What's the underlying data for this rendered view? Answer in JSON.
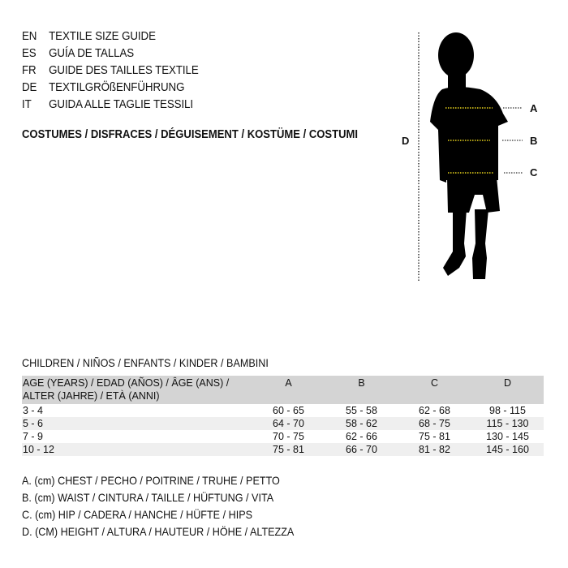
{
  "languages": [
    {
      "code": "EN",
      "title": "TEXTILE SIZE GUIDE"
    },
    {
      "code": "ES",
      "title": "GUÍA DE TALLAS"
    },
    {
      "code": "FR",
      "title": "GUIDE DES TAILLES TEXTILE"
    },
    {
      "code": "DE",
      "title": "TEXTILGRÖßENFÜHRUNG"
    },
    {
      "code": "IT",
      "title": "GUIDA ALLE TAGLIE TESSILI"
    }
  ],
  "category": "COSTUMES / DISFRACES / DÉGUISEMENT / KOSTÜME / COSTUMI",
  "figure": {
    "labels": {
      "a": "A",
      "b": "B",
      "c": "C",
      "d": "D"
    },
    "measure_line_color": "#e8d21a"
  },
  "table": {
    "caption": "CHILDREN / NIÑOS / ENFANTS / KINDER / BAMBINI",
    "header": {
      "age_line1": "AGE (YEARS) / EDAD (AÑOS) / ÂGE (ANS) /",
      "age_line2": "ALTER (JAHRE) / ETÀ (ANNI)",
      "a": "A",
      "b": "B",
      "c": "C",
      "d": "D"
    },
    "rows": [
      {
        "age": "3 - 4",
        "a": "60 - 65",
        "b": "55 - 58",
        "c": "62 - 68",
        "d": "98 - 115"
      },
      {
        "age": "5 - 6",
        "a": "64 - 70",
        "b": "58 - 62",
        "c": "68 - 75",
        "d": "115 - 130"
      },
      {
        "age": "7 - 9",
        "a": "70 - 75",
        "b": "62 - 66",
        "c": "75 - 81",
        "d": "130 - 145"
      },
      {
        "age": "10 - 12",
        "a": "75 - 81",
        "b": "66 - 70",
        "c": "81 - 82",
        "d": "145 - 160"
      }
    ]
  },
  "legend": [
    "A. (cm) CHEST / PECHO / POITRINE / TRUHE / PETTO",
    "B. (cm) WAIST / CINTURA / TAILLE / HÜFTUNG / VITA",
    "C. (cm) HIP / CADERA / HANCHE / HÜFTE / HIPS",
    "D. (CM) HEIGHT / ALTURA / HAUTEUR / HÖHE / ALTEZZA"
  ]
}
